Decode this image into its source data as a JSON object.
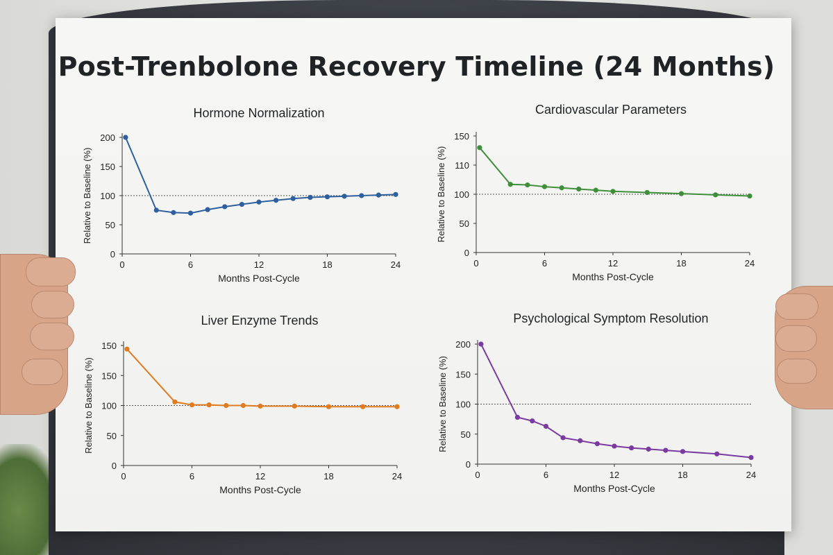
{
  "poster": {
    "title": "Post-Trenbolone Recovery Timeline (24 Months)"
  },
  "baseline_value": 100,
  "chart_data": [
    {
      "type": "line",
      "title": "Hormone Normalization",
      "xlabel": "Months Post-Cycle",
      "ylabel": "Relative to Baseline (%)",
      "xticks": [
        "0",
        "6",
        "12",
        "18",
        "24"
      ],
      "yticks": [
        "0",
        "50",
        "100",
        "150",
        "200"
      ],
      "xlim": [
        0,
        24
      ],
      "ylim": [
        0,
        200
      ],
      "color": "#2e5f9e",
      "series": [
        {
          "x": [
            0.3,
            3,
            4.5,
            6,
            7.5,
            9,
            10.5,
            12,
            13.5,
            15,
            16.5,
            18,
            19.5,
            21,
            22.5,
            24
          ],
          "values": [
            200,
            75,
            71,
            70,
            76,
            81,
            85,
            89,
            92,
            95,
            97,
            98,
            99,
            100,
            101,
            102
          ]
        }
      ]
    },
    {
      "type": "line",
      "title": "Cardiovascular Parameters",
      "xlabel": "Months Post-Cycle",
      "ylabel": "Relative to Baseline (%)",
      "xticks": [
        "0",
        "6",
        "12",
        "18",
        "24"
      ],
      "yticks": [
        "0",
        "50",
        "100",
        "110",
        "150"
      ],
      "xlim": [
        0,
        24
      ],
      "ylim": [
        0,
        200
      ],
      "color": "#3f8f3a",
      "series": [
        {
          "x": [
            0.3,
            3,
            4.5,
            6,
            7.5,
            9,
            10.5,
            12,
            15,
            18,
            21,
            24
          ],
          "values": [
            180,
            117,
            116,
            113,
            111,
            109,
            107,
            105,
            103,
            101,
            99,
            97
          ]
        }
      ]
    },
    {
      "type": "line",
      "title": "Liver Enzyme Trends",
      "xlabel": "Months Post-Cycle",
      "ylabel": "Relative to Baseline (%)",
      "xticks": [
        "0",
        "6",
        "12",
        "18",
        "24"
      ],
      "yticks": [
        "0",
        "50",
        "100",
        "150",
        "150"
      ],
      "xlim": [
        0,
        24
      ],
      "ylim": [
        0,
        200
      ],
      "color": "#e07b1f",
      "series": [
        {
          "x": [
            0.3,
            4.5,
            6,
            7.5,
            9,
            10.5,
            12,
            15,
            18,
            21,
            24
          ],
          "values": [
            194,
            106,
            101,
            101,
            100,
            100,
            99,
            99,
            98,
            98,
            98
          ]
        }
      ]
    },
    {
      "type": "line",
      "title": "Psychological Symptom Resolution",
      "xlabel": "Months Post-Cycle",
      "ylabel": "Relative to Baseline (%)",
      "xticks": [
        "0",
        "6",
        "12",
        "18",
        "24"
      ],
      "yticks": [
        "0",
        "50",
        "100",
        "150",
        "200"
      ],
      "xlim": [
        0,
        24
      ],
      "ylim": [
        0,
        200
      ],
      "color": "#7a3aa0",
      "series": [
        {
          "x": [
            0.3,
            3.5,
            4.8,
            6,
            7.5,
            9,
            10.5,
            12,
            13.5,
            15,
            16.5,
            18,
            21,
            24
          ],
          "values": [
            200,
            78,
            72,
            63,
            44,
            39,
            34,
            30,
            27,
            25,
            23,
            21,
            17,
            11
          ]
        }
      ]
    }
  ]
}
